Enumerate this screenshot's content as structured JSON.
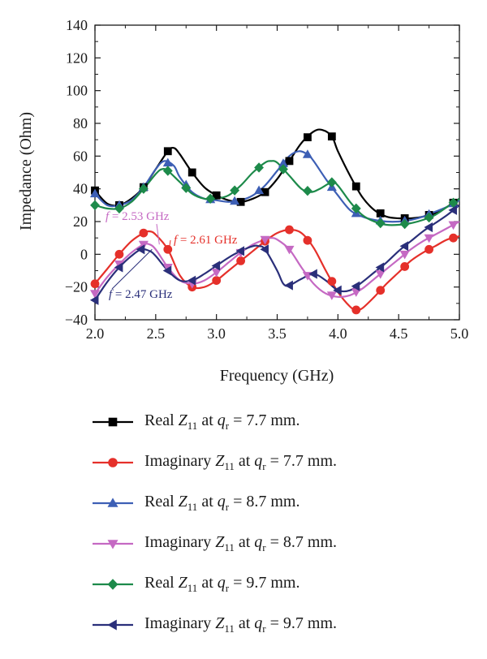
{
  "chart_data": {
    "type": "line",
    "xlabel": "Frequency (GHz)",
    "ylabel": "Impedance (Ohm)",
    "xlim": [
      2.0,
      5.0
    ],
    "ylim": [
      -40,
      140
    ],
    "x_ticks": [
      "2.0",
      "2.5",
      "3.0",
      "3.5",
      "4.0",
      "4.5",
      "5.0"
    ],
    "y_ticks": [
      "140",
      "120",
      "100",
      "80",
      "60",
      "40",
      "20",
      "0",
      "−20",
      "−40"
    ],
    "grid": false,
    "legend_placement": "bottom",
    "series": [
      {
        "name": "Real Z11 at qr = 7.7 mm.",
        "legend": {
          "pre": "Real ",
          "z": "Z",
          "zsub": "11",
          "at": " at ",
          "q": "q",
          "qsub": "r",
          "post": " = 7.7 mm."
        },
        "color": "#000000",
        "marker": "square",
        "x": [
          2.0,
          2.1,
          2.2,
          2.3,
          2.4,
          2.5,
          2.6,
          2.65,
          2.7,
          2.8,
          2.9,
          3.0,
          3.1,
          3.2,
          3.3,
          3.4,
          3.5,
          3.6,
          3.7,
          3.8,
          3.87,
          3.95,
          4.0,
          4.1,
          4.2,
          4.3,
          4.4,
          4.5,
          4.6,
          4.7,
          4.8,
          4.9,
          5.0
        ],
        "y": [
          39,
          31,
          30,
          34,
          41,
          52,
          63,
          65,
          61,
          50,
          41,
          36,
          33,
          32,
          34,
          38,
          46,
          57,
          68,
          75,
          76,
          72,
          63,
          48,
          35,
          27,
          23,
          22,
          22,
          23,
          25,
          29,
          34
        ],
        "markers_x": [
          2.0,
          2.2,
          2.4,
          2.6,
          2.8,
          3.0,
          3.2,
          3.4,
          3.6,
          3.75,
          3.95,
          4.15,
          4.35,
          4.55,
          4.75,
          4.95
        ]
      },
      {
        "name": "Imaginary Z11 at qr = 7.7 mm.",
        "legend": {
          "pre": "Imaginary ",
          "z": "Z",
          "zsub": "11",
          "at": " at ",
          "q": "q",
          "qsub": "r",
          "post": " = 7.7 mm."
        },
        "color": "#e5302a",
        "marker": "circle",
        "x": [
          2.0,
          2.1,
          2.2,
          2.3,
          2.4,
          2.45,
          2.5,
          2.6,
          2.7,
          2.8,
          2.9,
          3.0,
          3.1,
          3.2,
          3.3,
          3.4,
          3.5,
          3.6,
          3.7,
          3.8,
          3.9,
          4.0,
          4.1,
          4.15,
          4.2,
          4.3,
          4.4,
          4.5,
          4.6,
          4.7,
          4.8,
          4.9,
          5.0
        ],
        "y": [
          -18,
          -9,
          0,
          8,
          13,
          14,
          12,
          3,
          -13,
          -20,
          -20,
          -16,
          -10,
          -4,
          2,
          8,
          13,
          15,
          13,
          4,
          -10,
          -23,
          -32,
          -34,
          -33,
          -26,
          -18,
          -11,
          -4,
          1,
          5,
          9,
          11
        ],
        "markers_x": [
          2.0,
          2.2,
          2.4,
          2.6,
          2.8,
          3.0,
          3.2,
          3.4,
          3.6,
          3.75,
          3.95,
          4.15,
          4.35,
          4.55,
          4.75,
          4.95
        ]
      },
      {
        "name": "Real Z11 at qr = 8.7 mm.",
        "legend": {
          "pre": "Real ",
          "z": "Z",
          "zsub": "11",
          "at": " at ",
          "q": "q",
          "qsub": "r",
          "post": " = 8.7 mm."
        },
        "color": "#3d5fb5",
        "marker": "triangle-up",
        "x": [
          2.0,
          2.1,
          2.2,
          2.3,
          2.4,
          2.5,
          2.57,
          2.65,
          2.7,
          2.8,
          2.9,
          3.0,
          3.1,
          3.2,
          3.3,
          3.4,
          3.5,
          3.6,
          3.68,
          3.75,
          3.8,
          3.9,
          4.0,
          4.1,
          4.2,
          4.3,
          4.4,
          4.5,
          4.6,
          4.7,
          4.8,
          4.9,
          5.0
        ],
        "y": [
          37,
          30,
          30,
          33,
          41,
          52,
          57,
          54,
          47,
          38,
          34,
          33,
          32,
          33,
          36,
          42,
          51,
          60,
          63,
          61,
          57,
          46,
          36,
          27,
          23,
          21,
          20,
          20,
          21,
          23,
          26,
          29,
          33
        ],
        "markers_x": [
          2.0,
          2.2,
          2.4,
          2.6,
          2.75,
          2.95,
          3.15,
          3.35,
          3.55,
          3.75,
          3.95,
          4.15,
          4.35,
          4.55,
          4.75,
          4.95
        ]
      },
      {
        "name": "Imaginary Z11 at qr = 8.7 mm.",
        "legend": {
          "pre": "Imaginary ",
          "z": "Z",
          "zsub": "11",
          "at": " at ",
          "q": "q",
          "qsub": "r",
          "post": " = 8.7 mm."
        },
        "color": "#c569c3",
        "marker": "triangle-down",
        "x": [
          2.0,
          2.1,
          2.2,
          2.3,
          2.4,
          2.45,
          2.5,
          2.6,
          2.7,
          2.8,
          2.9,
          3.0,
          3.1,
          3.2,
          3.3,
          3.4,
          3.45,
          3.5,
          3.6,
          3.7,
          3.8,
          3.9,
          4.0,
          4.1,
          4.2,
          4.3,
          4.4,
          4.5,
          4.6,
          4.7,
          4.8,
          4.9,
          5.0
        ],
        "y": [
          -24,
          -14,
          -6,
          1,
          6,
          6,
          3,
          -8,
          -16,
          -18,
          -16,
          -11,
          -5,
          1,
          6,
          9,
          10,
          9,
          3,
          -8,
          -18,
          -24,
          -26,
          -25,
          -21,
          -15,
          -9,
          -3,
          3,
          8,
          12,
          16,
          20
        ],
        "markers_x": [
          2.0,
          2.2,
          2.4,
          2.6,
          2.8,
          3.0,
          3.2,
          3.4,
          3.6,
          3.75,
          3.95,
          4.15,
          4.35,
          4.55,
          4.75,
          4.95
        ]
      },
      {
        "name": "Real Z11 at qr = 9.7 mm.",
        "legend": {
          "pre": "Real ",
          "z": "Z",
          "zsub": "11",
          "at": " at ",
          "q": "q",
          "qsub": "r",
          "post": " = 9.7 mm."
        },
        "color": "#1d8a4a",
        "marker": "diamond",
        "x": [
          2.0,
          2.1,
          2.2,
          2.3,
          2.4,
          2.5,
          2.55,
          2.6,
          2.7,
          2.8,
          2.9,
          3.0,
          3.1,
          3.2,
          3.3,
          3.4,
          3.45,
          3.5,
          3.6,
          3.7,
          3.78,
          3.85,
          3.95,
          4.0,
          4.1,
          4.2,
          4.3,
          4.4,
          4.5,
          4.6,
          4.7,
          4.8,
          4.9,
          5.0
        ],
        "y": [
          30,
          28,
          28,
          32,
          40,
          49,
          52,
          51,
          44,
          37,
          34,
          34,
          36,
          42,
          50,
          56,
          57,
          56,
          48,
          40,
          38,
          40,
          44,
          42,
          32,
          24,
          20,
          18,
          18,
          19,
          21,
          24,
          29,
          34
        ],
        "markers_x": [
          2.0,
          2.2,
          2.4,
          2.6,
          2.75,
          2.95,
          3.15,
          3.35,
          3.55,
          3.75,
          3.95,
          4.15,
          4.35,
          4.55,
          4.75,
          4.95
        ]
      },
      {
        "name": "Imaginary Z11 at qr = 9.7 mm.",
        "legend": {
          "pre": "Imaginary ",
          "z": "Z",
          "zsub": "11",
          "at": " at ",
          "q": "q",
          "qsub": "r",
          "post": " = 9.7 mm."
        },
        "color": "#2a2f7a",
        "marker": "triangle-left",
        "x": [
          2.0,
          2.1,
          2.2,
          2.3,
          2.38,
          2.45,
          2.5,
          2.6,
          2.7,
          2.8,
          2.9,
          3.0,
          3.1,
          3.2,
          3.3,
          3.35,
          3.4,
          3.5,
          3.55,
          3.6,
          3.7,
          3.8,
          3.9,
          4.0,
          4.1,
          4.2,
          4.3,
          4.4,
          4.5,
          4.6,
          4.7,
          4.8,
          4.9,
          5.0
        ],
        "y": [
          -28,
          -17,
          -8,
          -1,
          3,
          2,
          -1,
          -10,
          -16,
          -16,
          -12,
          -7,
          -2,
          2,
          5,
          5,
          3,
          -10,
          -18,
          -19,
          -15,
          -12,
          -16,
          -22,
          -22,
          -17,
          -11,
          -5,
          2,
          8,
          14,
          19,
          24,
          30
        ],
        "markers_x": [
          2.0,
          2.2,
          2.38,
          2.6,
          2.8,
          3.0,
          3.2,
          3.4,
          3.6,
          3.8,
          4.0,
          4.15,
          4.35,
          4.55,
          4.75,
          4.95
        ]
      }
    ],
    "annotations": [
      {
        "id": "f253",
        "text": "f = 2.53 GHz",
        "color": "#c569c3",
        "target_x": 2.53,
        "target_y": 6
      },
      {
        "id": "f261",
        "text": "f = 2.61 GHz",
        "color": "#e5302a",
        "target_x": 2.61,
        "target_y": 3
      },
      {
        "id": "f247",
        "text": "f = 2.47 GHz",
        "color": "#2a2f7a",
        "target_x": 2.47,
        "target_y": 3
      }
    ]
  }
}
